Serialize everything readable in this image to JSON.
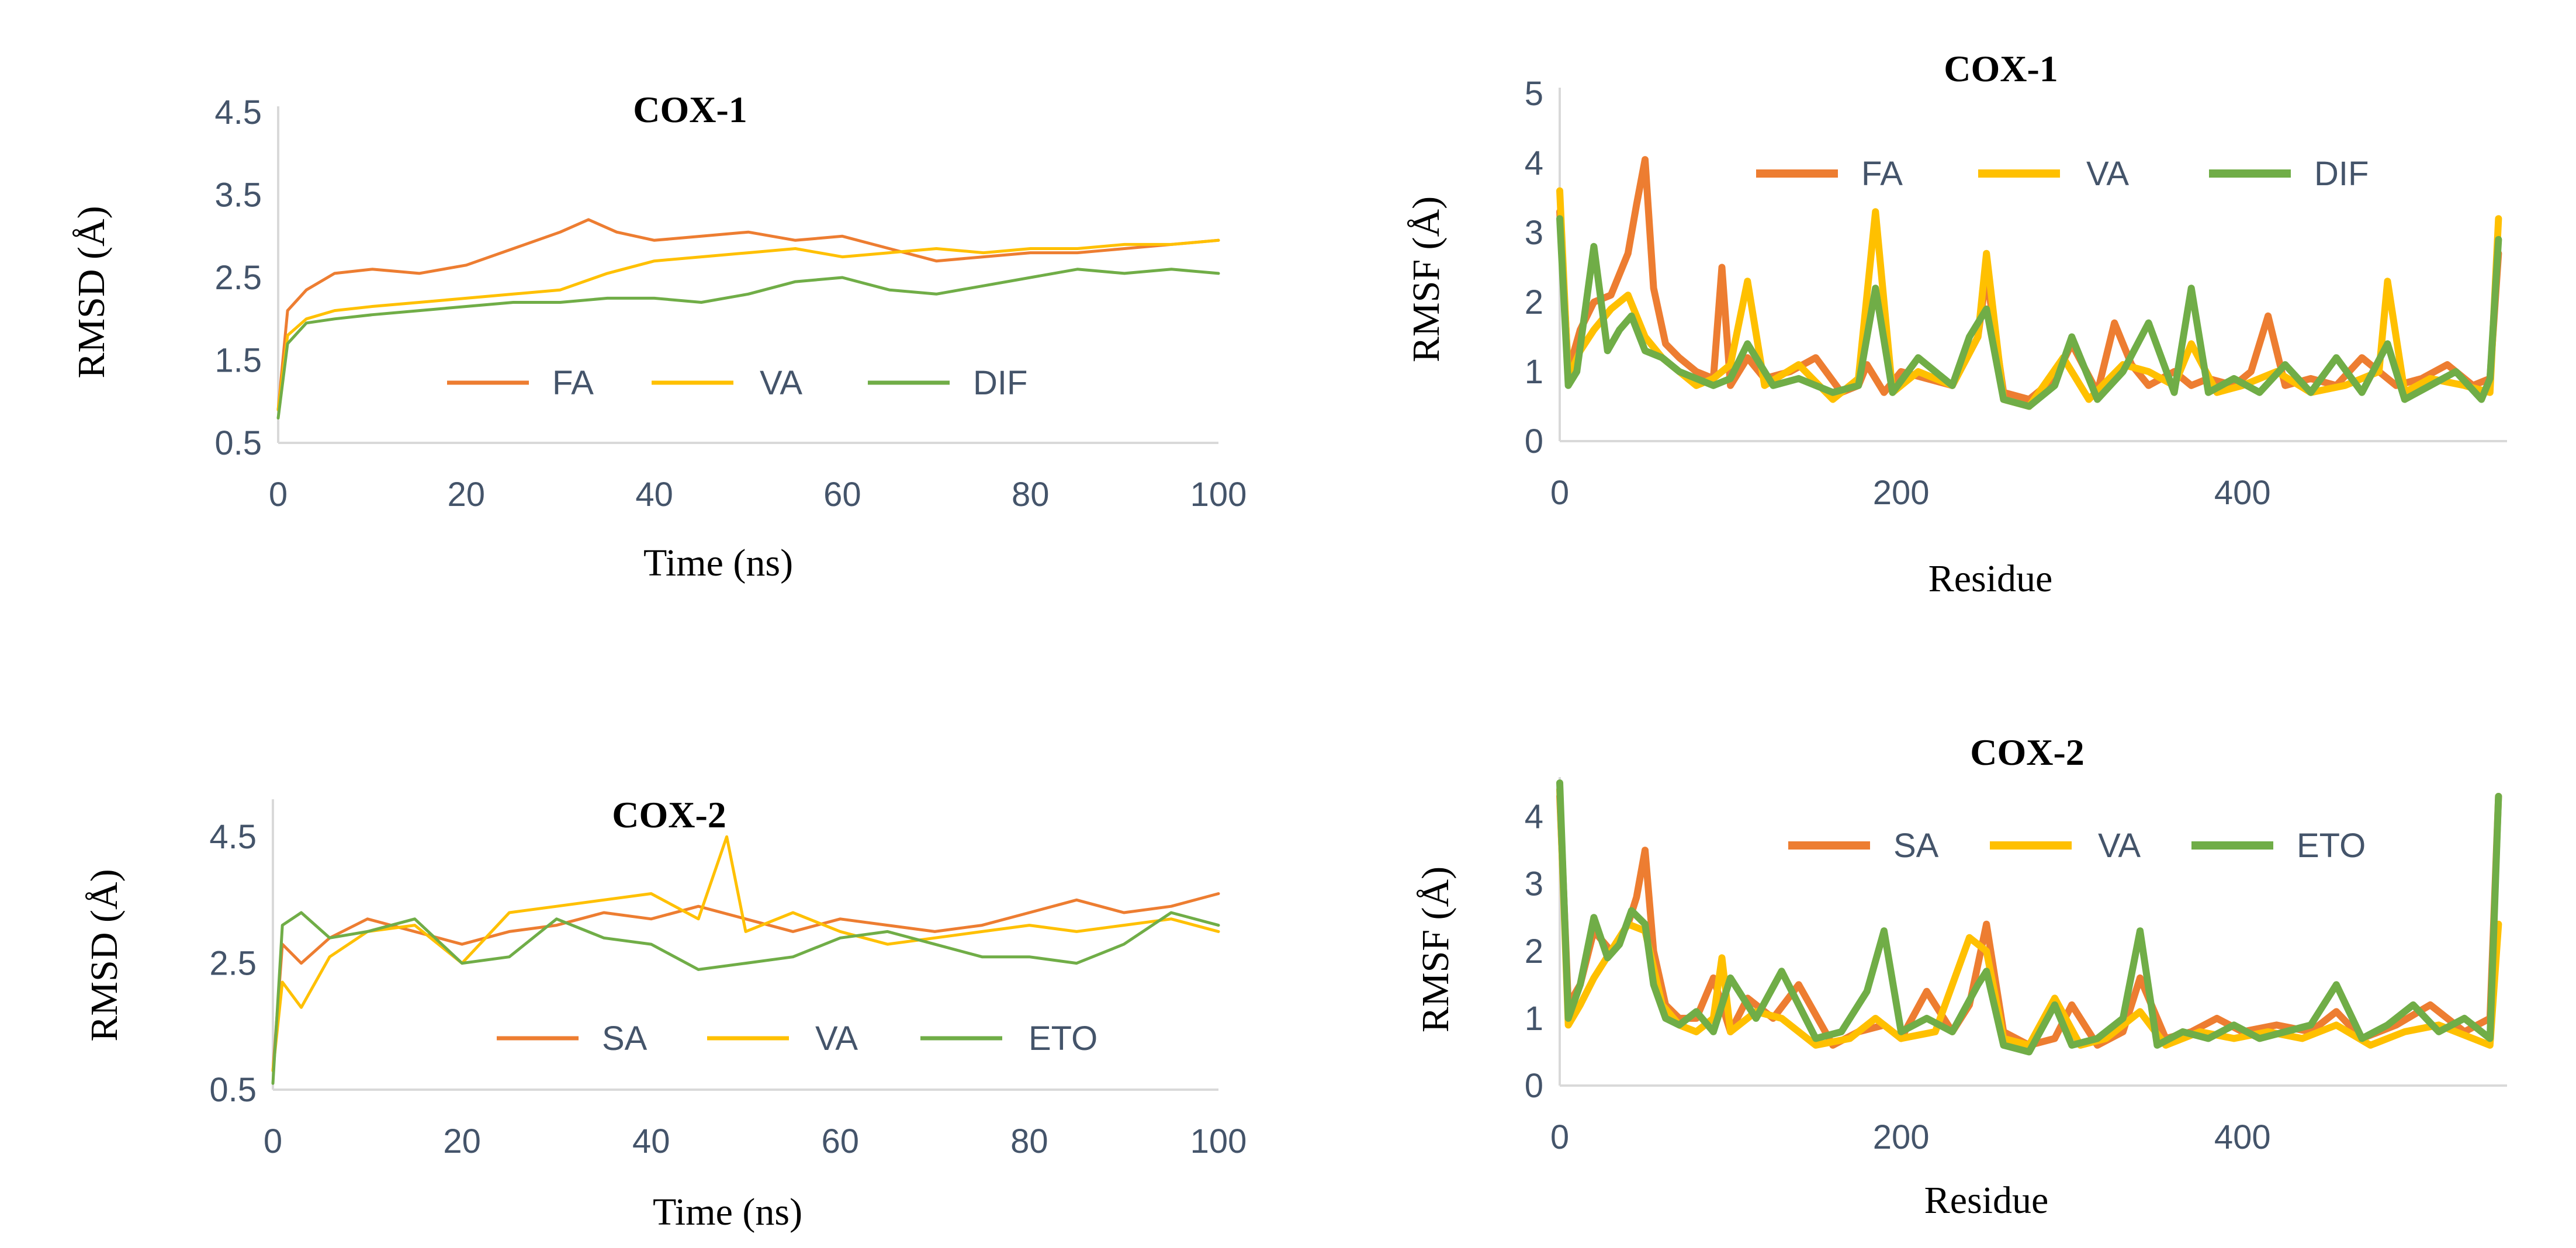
{
  "chart_data": [
    {
      "id": "rmsd_cox1",
      "type": "line",
      "title": "COX-1",
      "xlabel": "Time (ns)",
      "ylabel": "RMSD (Å)",
      "xlim": [
        0,
        100
      ],
      "ylim": [
        0.5,
        4.5
      ],
      "xticks": [
        "0",
        "20",
        "40",
        "60",
        "80",
        "100"
      ],
      "yticks": [
        "0.5",
        "1.5",
        "2.5",
        "3.5",
        "4.5"
      ],
      "legend_position": "middle",
      "series": [
        {
          "name": "FA",
          "color": "#ed7d31",
          "x": [
            0,
            1,
            3,
            6,
            10,
            15,
            20,
            25,
            30,
            33,
            36,
            40,
            45,
            50,
            55,
            60,
            65,
            70,
            75,
            80,
            85,
            90,
            95,
            100
          ],
          "y": [
            0.9,
            2.1,
            2.35,
            2.55,
            2.6,
            2.55,
            2.65,
            2.85,
            3.05,
            3.2,
            3.05,
            2.95,
            3.0,
            3.05,
            2.95,
            3.0,
            2.85,
            2.7,
            2.75,
            2.8,
            2.8,
            2.85,
            2.9,
            2.95
          ]
        },
        {
          "name": "VA",
          "color": "#ffc000",
          "x": [
            0,
            1,
            3,
            6,
            10,
            15,
            20,
            25,
            30,
            35,
            40,
            45,
            50,
            55,
            60,
            65,
            70,
            75,
            80,
            85,
            90,
            95,
            100
          ],
          "y": [
            0.9,
            1.8,
            2.0,
            2.1,
            2.15,
            2.2,
            2.25,
            2.3,
            2.35,
            2.55,
            2.7,
            2.75,
            2.8,
            2.85,
            2.75,
            2.8,
            2.85,
            2.8,
            2.85,
            2.85,
            2.9,
            2.9,
            2.95
          ]
        },
        {
          "name": "DIF",
          "color": "#70ad47",
          "x": [
            0,
            1,
            3,
            6,
            10,
            15,
            20,
            25,
            30,
            35,
            40,
            45,
            50,
            55,
            60,
            65,
            70,
            75,
            80,
            85,
            90,
            95,
            100
          ],
          "y": [
            0.8,
            1.7,
            1.95,
            2.0,
            2.05,
            2.1,
            2.15,
            2.2,
            2.2,
            2.25,
            2.25,
            2.2,
            2.3,
            2.45,
            2.5,
            2.35,
            2.3,
            2.4,
            2.5,
            2.6,
            2.55,
            2.6,
            2.55
          ]
        }
      ]
    },
    {
      "id": "rmsf_cox1",
      "type": "line",
      "title": "COX-1",
      "xlabel": "Residue",
      "ylabel": "RMSF (Å)",
      "xlim": [
        0,
        555
      ],
      "ylim": [
        0,
        5
      ],
      "xticks": [
        "0",
        "200",
        "400"
      ],
      "yticks": [
        "0",
        "1",
        "2",
        "3",
        "4",
        "5"
      ],
      "legend_position": "top",
      "series": [
        {
          "name": "FA",
          "color": "#ed7d31",
          "x": [
            0,
            5,
            12,
            20,
            30,
            40,
            45,
            50,
            55,
            62,
            70,
            80,
            90,
            95,
            100,
            110,
            120,
            135,
            150,
            165,
            175,
            180,
            190,
            200,
            215,
            230,
            245,
            250,
            260,
            275,
            290,
            300,
            315,
            325,
            335,
            345,
            360,
            370,
            380,
            395,
            405,
            415,
            425,
            440,
            455,
            470,
            480,
            490,
            505,
            520,
            535,
            545,
            550
          ],
          "y": [
            3.3,
            1.0,
            1.6,
            2.0,
            2.1,
            2.7,
            3.4,
            4.05,
            2.2,
            1.4,
            1.2,
            1.0,
            0.9,
            2.5,
            0.8,
            1.2,
            0.9,
            1.0,
            1.2,
            0.7,
            0.8,
            1.1,
            0.7,
            1.0,
            0.9,
            0.8,
            1.5,
            2.4,
            0.7,
            0.6,
            0.9,
            1.4,
            0.7,
            1.7,
            1.1,
            0.8,
            1.0,
            0.8,
            0.9,
            0.8,
            1.0,
            1.8,
            0.8,
            0.9,
            0.8,
            1.2,
            1.0,
            0.8,
            0.9,
            1.1,
            0.8,
            0.9,
            2.7
          ]
        },
        {
          "name": "VA",
          "color": "#ffc000",
          "x": [
            0,
            5,
            12,
            20,
            30,
            40,
            50,
            60,
            70,
            80,
            90,
            100,
            110,
            120,
            140,
            160,
            175,
            185,
            195,
            210,
            230,
            245,
            250,
            260,
            275,
            295,
            310,
            330,
            345,
            360,
            370,
            385,
            400,
            420,
            440,
            460,
            480,
            485,
            495,
            510,
            530,
            545,
            550
          ],
          "y": [
            3.6,
            0.9,
            1.3,
            1.6,
            1.9,
            2.1,
            1.5,
            1.2,
            1.0,
            0.8,
            0.9,
            1.1,
            2.3,
            0.8,
            1.1,
            0.6,
            0.9,
            3.3,
            0.7,
            1.0,
            0.8,
            1.5,
            2.7,
            0.6,
            0.5,
            1.2,
            0.6,
            1.1,
            1.0,
            0.8,
            1.4,
            0.7,
            0.8,
            1.0,
            0.7,
            0.8,
            1.0,
            2.3,
            0.7,
            0.9,
            0.8,
            0.7,
            3.2
          ]
        },
        {
          "name": "DIF",
          "color": "#70ad47",
          "x": [
            0,
            5,
            10,
            20,
            28,
            35,
            42,
            50,
            60,
            70,
            80,
            90,
            100,
            110,
            125,
            140,
            160,
            175,
            185,
            195,
            210,
            230,
            240,
            250,
            260,
            275,
            290,
            300,
            315,
            330,
            345,
            360,
            370,
            380,
            395,
            410,
            425,
            440,
            455,
            470,
            485,
            495,
            510,
            525,
            540,
            545,
            550
          ],
          "y": [
            3.2,
            0.8,
            1.0,
            2.8,
            1.3,
            1.6,
            1.8,
            1.3,
            1.2,
            1.0,
            0.9,
            0.8,
            0.9,
            1.4,
            0.8,
            0.9,
            0.7,
            0.8,
            2.2,
            0.7,
            1.2,
            0.8,
            1.5,
            1.9,
            0.6,
            0.5,
            0.8,
            1.5,
            0.6,
            1.0,
            1.7,
            0.7,
            2.2,
            0.7,
            0.9,
            0.7,
            1.1,
            0.7,
            1.2,
            0.7,
            1.4,
            0.6,
            0.8,
            1.0,
            0.6,
            0.9,
            2.9
          ]
        }
      ]
    },
    {
      "id": "rmsd_cox2",
      "type": "line",
      "title": "COX-2",
      "xlabel": "Time (ns)",
      "ylabel": "RMSD (Å)",
      "xlim": [
        0,
        100
      ],
      "ylim": [
        0.5,
        5.0
      ],
      "xticks": [
        "0",
        "20",
        "40",
        "60",
        "80",
        "100"
      ],
      "yticks": [
        "0.5",
        "2.5",
        "4.5"
      ],
      "legend_position": "bottom",
      "series": [
        {
          "name": "SA",
          "color": "#ed7d31",
          "x": [
            0,
            1,
            3,
            6,
            10,
            15,
            20,
            25,
            30,
            35,
            40,
            45,
            50,
            55,
            60,
            65,
            70,
            75,
            80,
            85,
            90,
            95,
            100
          ],
          "y": [
            0.8,
            2.8,
            2.5,
            2.9,
            3.2,
            3.0,
            2.8,
            3.0,
            3.1,
            3.3,
            3.2,
            3.4,
            3.2,
            3.0,
            3.2,
            3.1,
            3.0,
            3.1,
            3.3,
            3.5,
            3.3,
            3.4,
            3.6
          ]
        },
        {
          "name": "VA",
          "color": "#ffc000",
          "x": [
            0,
            1,
            3,
            6,
            10,
            15,
            20,
            25,
            30,
            35,
            40,
            45,
            48,
            50,
            55,
            60,
            65,
            70,
            75,
            80,
            85,
            90,
            95,
            100
          ],
          "y": [
            0.8,
            2.2,
            1.8,
            2.6,
            3.0,
            3.1,
            2.5,
            3.3,
            3.4,
            3.5,
            3.6,
            3.2,
            4.5,
            3.0,
            3.3,
            3.0,
            2.8,
            2.9,
            3.0,
            3.1,
            3.0,
            3.1,
            3.2,
            3.0
          ]
        },
        {
          "name": "ETO",
          "color": "#70ad47",
          "x": [
            0,
            1,
            3,
            6,
            10,
            15,
            20,
            25,
            30,
            35,
            40,
            45,
            50,
            55,
            60,
            65,
            70,
            75,
            80,
            85,
            90,
            95,
            100
          ],
          "y": [
            0.6,
            3.1,
            3.3,
            2.9,
            3.0,
            3.2,
            2.5,
            2.6,
            3.2,
            2.9,
            2.8,
            2.4,
            2.5,
            2.6,
            2.9,
            3.0,
            2.8,
            2.6,
            2.6,
            2.5,
            2.8,
            3.3,
            3.1
          ]
        }
      ]
    },
    {
      "id": "rmsf_cox2",
      "type": "line",
      "title": "COX-2",
      "xlabel": "Residue",
      "ylabel": "RMSF (Å)",
      "xlim": [
        0,
        555
      ],
      "ylim": [
        0,
        4.5
      ],
      "xticks": [
        "0",
        "200",
        "400"
      ],
      "yticks": [
        "0",
        "1",
        "2",
        "3",
        "4"
      ],
      "legend_position": "top",
      "series": [
        {
          "name": "SA",
          "color": "#ed7d31",
          "x": [
            0,
            5,
            12,
            20,
            30,
            40,
            45,
            50,
            55,
            62,
            70,
            80,
            90,
            100,
            110,
            125,
            140,
            160,
            175,
            190,
            200,
            215,
            230,
            240,
            250,
            260,
            275,
            290,
            300,
            315,
            330,
            340,
            355,
            370,
            385,
            400,
            420,
            440,
            455,
            470,
            490,
            510,
            530,
            545,
            550
          ],
          "y": [
            4.3,
            1.2,
            1.5,
            2.3,
            2.0,
            2.4,
            2.8,
            3.5,
            2.0,
            1.2,
            1.0,
            1.0,
            1.6,
            0.8,
            1.3,
            1.0,
            1.5,
            0.6,
            0.8,
            0.9,
            0.7,
            1.4,
            0.8,
            1.2,
            2.4,
            0.8,
            0.6,
            0.7,
            1.2,
            0.6,
            0.8,
            1.6,
            0.7,
            0.8,
            1.0,
            0.8,
            0.9,
            0.8,
            1.1,
            0.7,
            0.9,
            1.2,
            0.8,
            1.0,
            4.3
          ]
        },
        {
          "name": "VA",
          "color": "#ffc000",
          "x": [
            0,
            5,
            12,
            20,
            30,
            40,
            50,
            60,
            70,
            80,
            90,
            95,
            100,
            115,
            130,
            150,
            170,
            185,
            200,
            220,
            240,
            250,
            260,
            275,
            290,
            305,
            320,
            340,
            355,
            375,
            395,
            415,
            435,
            455,
            475,
            495,
            515,
            535,
            545,
            550
          ],
          "y": [
            4.4,
            0.9,
            1.2,
            1.6,
            2.0,
            2.4,
            2.3,
            1.2,
            0.9,
            0.8,
            1.0,
            1.9,
            0.8,
            1.1,
            1.0,
            0.6,
            0.7,
            1.0,
            0.7,
            0.8,
            2.2,
            2.0,
            0.7,
            0.6,
            1.3,
            0.6,
            0.7,
            1.1,
            0.6,
            0.8,
            0.7,
            0.8,
            0.7,
            0.9,
            0.6,
            0.8,
            0.9,
            0.7,
            0.6,
            2.4
          ]
        },
        {
          "name": "ETO",
          "color": "#70ad47",
          "x": [
            0,
            5,
            12,
            20,
            28,
            35,
            42,
            50,
            55,
            62,
            70,
            80,
            90,
            100,
            115,
            130,
            150,
            165,
            180,
            190,
            200,
            215,
            230,
            245,
            250,
            260,
            275,
            290,
            300,
            315,
            330,
            340,
            350,
            365,
            380,
            395,
            410,
            425,
            440,
            455,
            470,
            485,
            500,
            515,
            530,
            545,
            550
          ],
          "y": [
            4.5,
            1.0,
            1.5,
            2.5,
            1.9,
            2.1,
            2.6,
            2.4,
            1.5,
            1.0,
            0.9,
            1.1,
            0.8,
            1.6,
            1.0,
            1.7,
            0.7,
            0.8,
            1.4,
            2.3,
            0.8,
            1.0,
            0.8,
            1.5,
            1.7,
            0.6,
            0.5,
            1.2,
            0.6,
            0.7,
            1.0,
            2.3,
            0.6,
            0.8,
            0.7,
            0.9,
            0.7,
            0.8,
            0.9,
            1.5,
            0.7,
            0.9,
            1.2,
            0.8,
            1.0,
            0.7,
            4.3
          ]
        }
      ]
    }
  ]
}
